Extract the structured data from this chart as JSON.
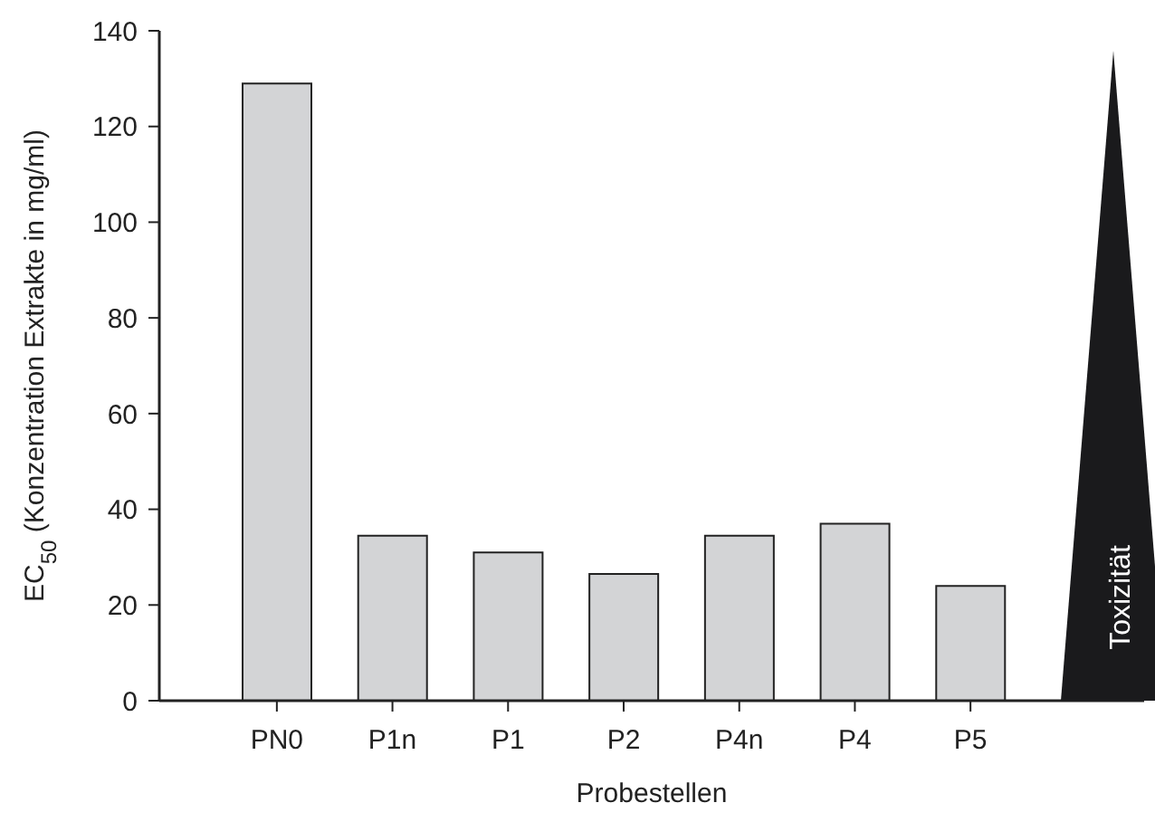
{
  "chart_data": {
    "type": "bar",
    "xlabel": "Probestellen",
    "ylabel": "EC$_{50}$ (Konzentration Extrakte in mg/ml)",
    "categories": [
      "PN0",
      "P1n",
      "P1",
      "P2",
      "P4n",
      "P4",
      "P5"
    ],
    "values": [
      129,
      34.5,
      31,
      26.5,
      34.5,
      37,
      24
    ],
    "color": "#d3d4d6",
    "ylim": [
      0,
      140
    ],
    "yticks": [
      0,
      20,
      40,
      60,
      80,
      100,
      120,
      140
    ],
    "annotations": [
      "Toxizität"
    ]
  }
}
